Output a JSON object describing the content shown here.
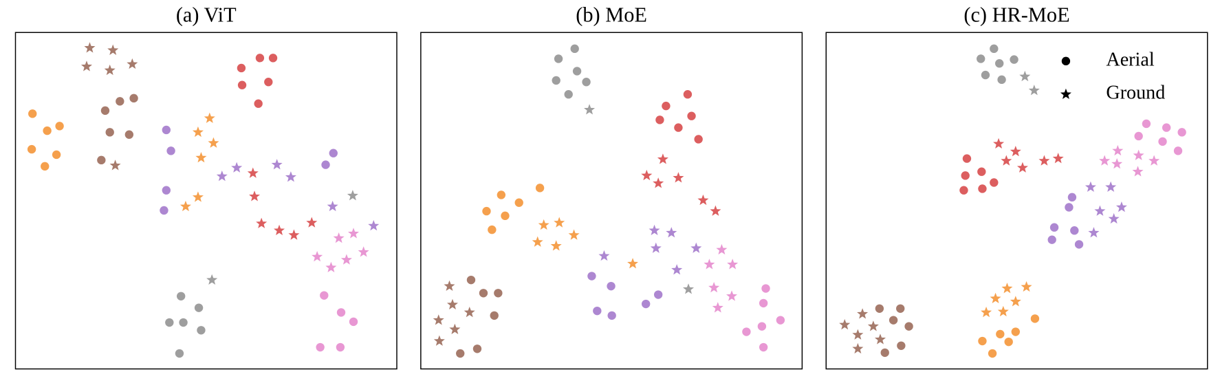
{
  "chart_data": [
    {
      "type": "scatter",
      "title": "(a) ViT",
      "xlim": [
        0,
        493
      ],
      "ylim": [
        0,
        435
      ],
      "series": [
        {
          "color": "#f5a04d",
          "marker": "circle",
          "x": [
            22,
            41,
            57,
            21,
            53,
            38
          ],
          "y": [
            330,
            308,
            314,
            284,
            277,
            262
          ]
        },
        {
          "color": "#f5a04d",
          "marker": "star",
          "x": [
            251,
            236,
            256,
            240,
            236,
            220
          ],
          "y": [
            324,
            306,
            292,
            273,
            222,
            210
          ]
        },
        {
          "color": "#a67b6c",
          "marker": "star",
          "x": [
            96,
            126,
            92,
            122,
            151,
            129
          ],
          "y": [
            415,
            412,
            391,
            386,
            394,
            263
          ]
        },
        {
          "color": "#a67b6c",
          "marker": "circle",
          "x": [
            135,
            153,
            116,
            122,
            147,
            111
          ],
          "y": [
            346,
            350,
            334,
            306,
            303,
            270
          ]
        },
        {
          "color": "#dc5e5f",
          "marker": "circle",
          "x": [
            292,
            316,
            333,
            293,
            327,
            314
          ],
          "y": [
            389,
            402,
            402,
            367,
            371,
            343
          ]
        },
        {
          "color": "#dc5e5f",
          "marker": "star",
          "x": [
            307,
            309,
            318,
            341,
            360,
            383
          ],
          "y": [
            253,
            223,
            188,
            179,
            173,
            189
          ]
        },
        {
          "color": "#ad87d1",
          "marker": "circle",
          "x": [
            195,
            201,
            411,
            401,
            195,
            192
          ],
          "y": [
            309,
            282,
            279,
            264,
            231,
            205
          ]
        },
        {
          "color": "#ad87d1",
          "marker": "star",
          "x": [
            267,
            286,
            338,
            356,
            410,
            463
          ],
          "y": [
            249,
            260,
            264,
            248,
            210,
            185
          ]
        },
        {
          "color": "#e897d3",
          "marker": "star",
          "x": [
            437,
            418,
            450,
            390,
            428,
            408
          ],
          "y": [
            175,
            169,
            151,
            145,
            141,
            131
          ]
        },
        {
          "color": "#e897d3",
          "marker": "circle",
          "x": [
            399,
            421,
            437,
            394,
            420
          ],
          "y": [
            95,
            73,
            61,
            28,
            28
          ]
        },
        {
          "color": "#9e9e9e",
          "marker": "circle",
          "x": [
            214,
            237,
            199,
            217,
            240,
            212
          ],
          "y": [
            94,
            79,
            60,
            60,
            50,
            20
          ]
        },
        {
          "color": "#9e9e9e",
          "marker": "star",
          "x": [
            254,
            436
          ],
          "y": [
            115,
            224
          ]
        }
      ]
    },
    {
      "type": "scatter",
      "title": "(b) MoE",
      "xlim": [
        0,
        493
      ],
      "ylim": [
        0,
        435
      ],
      "series": [
        {
          "color": "#9e9e9e",
          "marker": "circle",
          "x": [
            178,
            199,
            202,
            175,
            214,
            191
          ],
          "y": [
            401,
            414,
            385,
            373,
            371,
            355
          ]
        },
        {
          "color": "#9e9e9e",
          "marker": "star",
          "x": [
            218,
            346
          ],
          "y": [
            335,
            103
          ]
        },
        {
          "color": "#dc5e5f",
          "marker": "circle",
          "x": [
            317,
            345,
            309,
            333,
            350,
            359
          ],
          "y": [
            340,
            355,
            322,
            312,
            327,
            297
          ]
        },
        {
          "color": "#dc5e5f",
          "marker": "star",
          "x": [
            313,
            292,
            307,
            333,
            365,
            381
          ],
          "y": [
            271,
            250,
            240,
            247,
            218,
            204
          ]
        },
        {
          "color": "#f5a04d",
          "marker": "circle",
          "x": [
            104,
            154,
            85,
            127,
            109,
            92
          ],
          "y": [
            225,
            234,
            204,
            215,
            198,
            180
          ]
        },
        {
          "color": "#f5a04d",
          "marker": "star",
          "x": [
            159,
            179,
            198,
            151,
            175,
            274
          ],
          "y": [
            186,
            189,
            173,
            164,
            159,
            136
          ]
        },
        {
          "color": "#a67b6c",
          "marker": "circle",
          "x": [
            65,
            81,
            100,
            95,
            73,
            51
          ],
          "y": [
            115,
            98,
            98,
            69,
            26,
            20
          ]
        },
        {
          "color": "#a67b6c",
          "marker": "star",
          "x": [
            37,
            41,
            63,
            23,
            44,
            24
          ],
          "y": [
            107,
            83,
            73,
            63,
            51,
            36
          ]
        },
        {
          "color": "#ad87d1",
          "marker": "star",
          "x": [
            302,
            324,
            304,
            356,
            331,
            237
          ],
          "y": [
            179,
            176,
            156,
            156,
            128,
            146
          ]
        },
        {
          "color": "#ad87d1",
          "marker": "circle",
          "x": [
            221,
            246,
            307,
            291,
            228,
            247
          ],
          "y": [
            120,
            107,
            96,
            84,
            75,
            69
          ]
        },
        {
          "color": "#e897d3",
          "marker": "star",
          "x": [
            389,
            373,
            403,
            379,
            402,
            384
          ],
          "y": [
            154,
            135,
            135,
            105,
            94,
            79
          ]
        },
        {
          "color": "#e897d3",
          "marker": "circle",
          "x": [
            446,
            443,
            465,
            441,
            421,
            443
          ],
          "y": [
            104,
            85,
            63,
            55,
            48,
            28
          ]
        }
      ]
    },
    {
      "type": "scatter",
      "title": "(c) HR-MoE",
      "xlim": [
        0,
        493
      ],
      "ylim": [
        0,
        435
      ],
      "series": [
        {
          "color": "#9e9e9e",
          "marker": "circle",
          "x": [
            200,
            217,
            224,
            243,
            206,
            227
          ],
          "y": [
            401,
            414,
            395,
            400,
            380,
            374
          ]
        },
        {
          "color": "#9e9e9e",
          "marker": "star",
          "x": [
            257,
            269
          ],
          "y": [
            378,
            360
          ]
        },
        {
          "color": "#dc5e5f",
          "marker": "star",
          "x": [
            223,
            245,
            233,
            254,
            282,
            300
          ],
          "y": [
            291,
            281,
            269,
            260,
            269,
            272
          ]
        },
        {
          "color": "#dc5e5f",
          "marker": "circle",
          "x": [
            182,
            201,
            217,
            180,
            178,
            202
          ],
          "y": [
            272,
            255,
            241,
            250,
            231,
            233
          ]
        },
        {
          "color": "#e897d3",
          "marker": "circle",
          "x": [
            414,
            440,
            404,
            460,
            435,
            455
          ],
          "y": [
            317,
            312,
            301,
            306,
            294,
            282
          ]
        },
        {
          "color": "#e897d3",
          "marker": "star",
          "x": [
            377,
            360,
            376,
            404,
            424,
            403
          ],
          "y": [
            282,
            269,
            265,
            276,
            269,
            255
          ]
        },
        {
          "color": "#ad87d1",
          "marker": "star",
          "x": [
            342,
            368,
            382,
            354,
            372,
            346
          ],
          "y": [
            235,
            235,
            209,
            204,
            194,
            176
          ]
        },
        {
          "color": "#ad87d1",
          "marker": "circle",
          "x": [
            318,
            314,
            295,
            321,
            292,
            327
          ],
          "y": [
            222,
            209,
            183,
            179,
            167,
            161
          ]
        },
        {
          "color": "#f5a04d",
          "marker": "star",
          "x": [
            234,
            259,
            219,
            245,
            207,
            229
          ],
          "y": [
            104,
            106,
            91,
            87,
            73,
            74
          ]
        },
        {
          "color": "#f5a04d",
          "marker": "circle",
          "x": [
            270,
            245,
            225,
            202,
            236,
            215
          ],
          "y": [
            65,
            48,
            45,
            36,
            35,
            20
          ]
        },
        {
          "color": "#a67b6c",
          "marker": "circle",
          "x": [
            69,
            96,
            87,
            107,
            97,
            76
          ],
          "y": [
            78,
            78,
            63,
            55,
            30,
            21
          ]
        },
        {
          "color": "#a67b6c",
          "marker": "star",
          "x": [
            47,
            24,
            61,
            41,
            70,
            41
          ],
          "y": [
            71,
            57,
            55,
            44,
            38,
            26
          ]
        }
      ],
      "legend": {
        "position": "upper right",
        "color": "#000000",
        "entries": [
          {
            "label": "Aerial",
            "marker": "circle"
          },
          {
            "label": "Ground",
            "marker": "star"
          }
        ]
      }
    }
  ]
}
